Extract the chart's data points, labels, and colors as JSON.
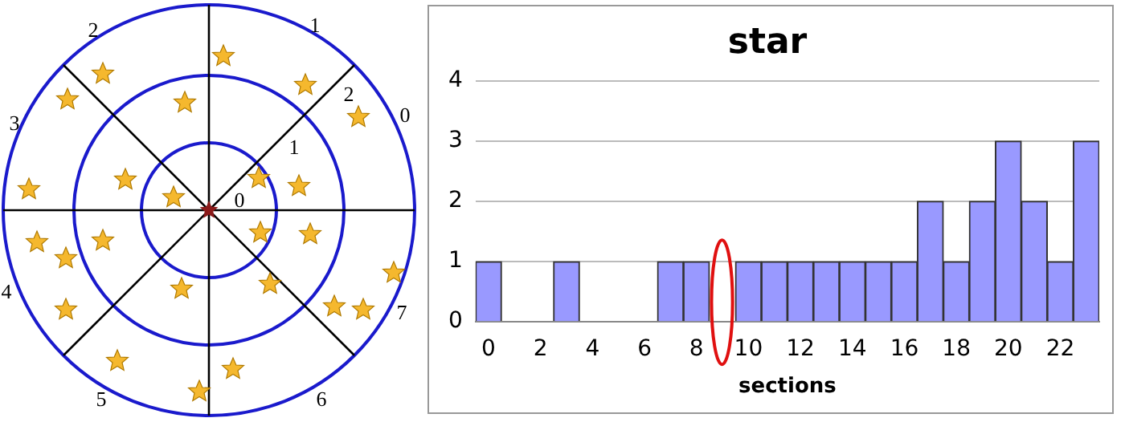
{
  "chart_data": {
    "type": "bar",
    "title": "star",
    "xlabel": "sections",
    "categories": [
      "0",
      null,
      "2",
      null,
      "4",
      null,
      "6",
      null,
      "8",
      null,
      "10",
      null,
      "12",
      null,
      "14",
      null,
      "16",
      null,
      "18",
      null,
      "20",
      null,
      "22",
      null
    ],
    "values": [
      1,
      0,
      0,
      1,
      0,
      0,
      0,
      1,
      1,
      0,
      1,
      1,
      1,
      1,
      1,
      1,
      1,
      2,
      1,
      2,
      3,
      2,
      1,
      3
    ],
    "color": "#9999ff",
    "ylim": [
      0,
      4
    ],
    "yticks": [
      0,
      1,
      2,
      3,
      4
    ],
    "grid": "y",
    "annotations": [
      "0",
      "1",
      "2",
      "0",
      "1",
      "2",
      "3",
      "4",
      "5",
      "6",
      "7"
    ]
  }
}
